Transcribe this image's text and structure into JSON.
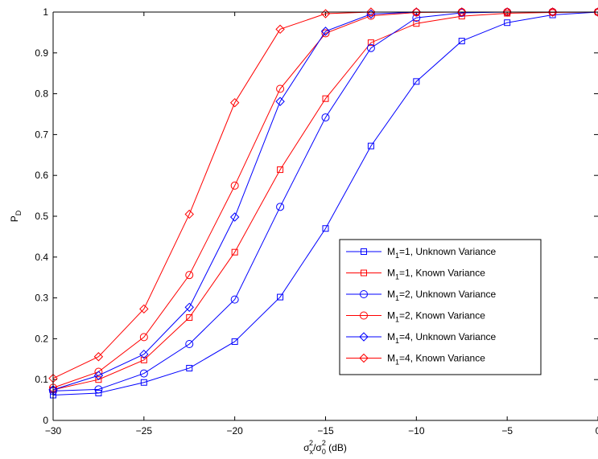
{
  "chart_data": {
    "type": "line",
    "title": "",
    "xlabel": "σ_x^2/σ_0^2 (dB)",
    "xlabel_parts": {
      "sigma": "σ",
      "sub_x": "x",
      "sup": "2",
      "slash": "/",
      "sigma2": "σ",
      "sub_0": "0",
      "sup2": "2",
      "unit": " (dB)"
    },
    "ylabel": "P_D",
    "ylabel_parts": {
      "main": "P",
      "sub": "D"
    },
    "xlim": [
      -30,
      0
    ],
    "ylim": [
      0,
      1
    ],
    "xticks": [
      -30,
      -25,
      -20,
      -15,
      -10,
      -5,
      0
    ],
    "xtick_labels": [
      "−30",
      "−25",
      "−20",
      "−15",
      "−10",
      "−5",
      "0"
    ],
    "yticks": [
      0,
      0.1,
      0.2,
      0.3,
      0.4,
      0.5,
      0.6,
      0.7,
      0.8,
      0.9,
      1
    ],
    "ytick_labels": [
      "0",
      "0.1",
      "0.2",
      "0.3",
      "0.4",
      "0.5",
      "0.6",
      "0.7",
      "0.8",
      "0.9",
      "1"
    ],
    "grid": false,
    "legend_position": "lower-right",
    "x": [
      -30,
      -27.5,
      -25,
      -22.5,
      -20,
      -17.5,
      -15,
      -12.5,
      -10,
      -7.5,
      -5,
      -2.5,
      0
    ],
    "series": [
      {
        "name": "M_1=1, Unknown Variance",
        "label_pre": "M",
        "label_sub": "1",
        "label_post": "=1, Unknown Variance",
        "color": "#0000ff",
        "marker": "square",
        "values": [
          0.062,
          0.067,
          0.093,
          0.128,
          0.193,
          0.302,
          0.47,
          0.672,
          0.83,
          0.929,
          0.974,
          0.993,
          1.0
        ]
      },
      {
        "name": "M_1=1, Known Variance",
        "label_pre": "M",
        "label_sub": "1",
        "label_post": "=1, Known Variance",
        "color": "#ff0000",
        "marker": "square",
        "values": [
          0.075,
          0.1,
          0.148,
          0.252,
          0.412,
          0.614,
          0.788,
          0.925,
          0.972,
          0.99,
          0.997,
          0.999,
          1.0
        ]
      },
      {
        "name": "M_1=2, Unknown Variance",
        "label_pre": "M",
        "label_sub": "1",
        "label_post": "=2, Unknown Variance",
        "color": "#0000ff",
        "marker": "circle",
        "values": [
          0.072,
          0.076,
          0.115,
          0.187,
          0.296,
          0.523,
          0.742,
          0.912,
          0.986,
          0.998,
          1.0,
          1.0,
          1.0
        ]
      },
      {
        "name": "M_1=2, Known Variance",
        "label_pre": "M",
        "label_sub": "1",
        "label_post": "=2, Known Variance",
        "color": "#ff0000",
        "marker": "circle",
        "values": [
          0.08,
          0.119,
          0.204,
          0.356,
          0.575,
          0.812,
          0.948,
          0.991,
          0.999,
          1.0,
          1.0,
          1.0,
          1.0
        ]
      },
      {
        "name": "M_1=4, Unknown Variance",
        "label_pre": "M",
        "label_sub": "1",
        "label_post": "=4, Unknown Variance",
        "color": "#0000ff",
        "marker": "diamond",
        "values": [
          0.075,
          0.11,
          0.162,
          0.277,
          0.498,
          0.781,
          0.953,
          0.995,
          1.0,
          1.0,
          1.0,
          1.0,
          1.0
        ]
      },
      {
        "name": "M_1=4, Known Variance",
        "label_pre": "M",
        "label_sub": "1",
        "label_post": "=4, Known Variance",
        "color": "#ff0000",
        "marker": "diamond",
        "values": [
          0.103,
          0.156,
          0.273,
          0.505,
          0.778,
          0.958,
          0.996,
          1.0,
          1.0,
          1.0,
          1.0,
          1.0,
          1.0
        ]
      }
    ]
  }
}
